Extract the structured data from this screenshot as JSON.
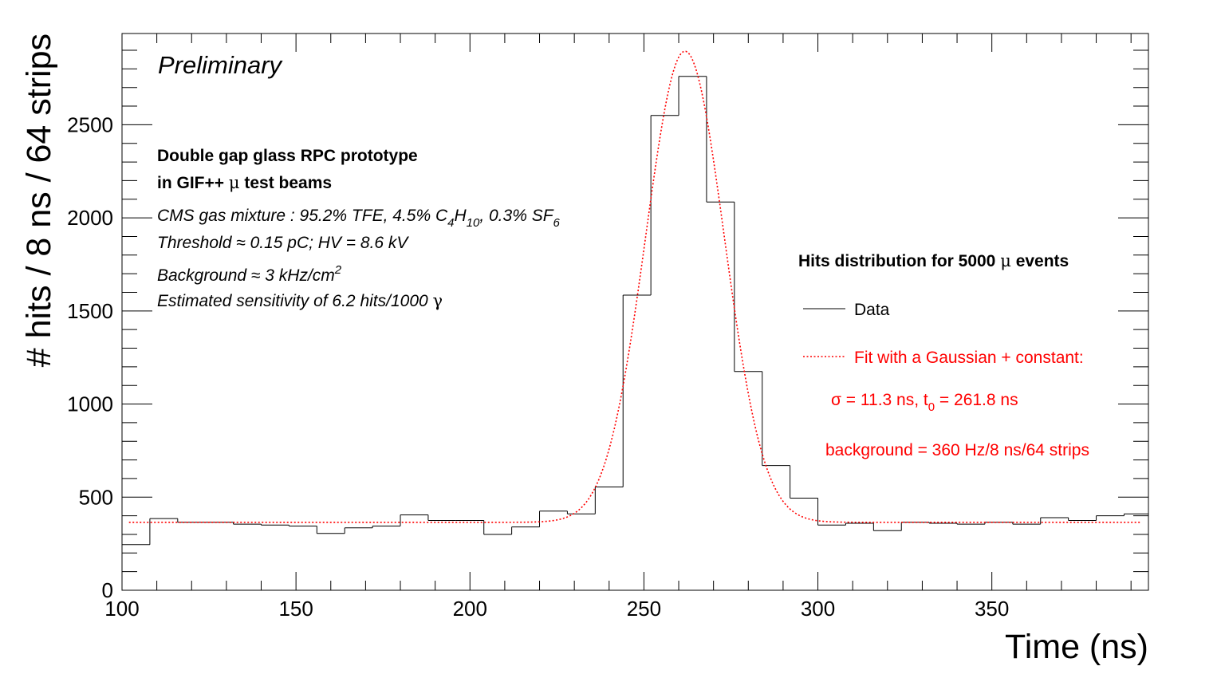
{
  "chart_data": {
    "type": "bar",
    "subtype": "histogram",
    "xlabel": "Time (ns)",
    "ylabel": "# hits / 8 ns / 64 strips",
    "xlim": [
      100,
      395
    ],
    "ylim": [
      0,
      2990
    ],
    "x_ticks": [
      100,
      150,
      200,
      250,
      300,
      350
    ],
    "y_ticks": [
      0,
      500,
      1000,
      1500,
      2000,
      2500
    ],
    "x_tick_labels": [
      "100",
      "150",
      "200",
      "250",
      "300",
      "350"
    ],
    "y_tick_labels": [
      "0",
      "500",
      "1000",
      "1500",
      "2000",
      "2500"
    ],
    "bin_width": 8,
    "bin_start": 100,
    "series": [
      {
        "name": "Data",
        "color": "#000000",
        "style": "histogram-step",
        "values": [
          245,
          385,
          365,
          365,
          355,
          350,
          345,
          305,
          335,
          345,
          405,
          375,
          375,
          300,
          340,
          425,
          410,
          555,
          1585,
          2550,
          2760,
          2085,
          1175,
          670,
          495,
          350,
          360,
          320,
          365,
          360,
          355,
          365,
          355,
          390,
          375,
          400,
          410
        ]
      },
      {
        "name": "Fit with a Gaussian + constant:",
        "color": "#ff0000",
        "style": "dotted-line",
        "fit": {
          "constant": 365,
          "amplitude": 2530,
          "mean": 261.8,
          "sigma": 11.3
        }
      }
    ],
    "annotations": {
      "preliminary": "Preliminary",
      "info_line1": "Double gap glass RPC prototype",
      "info_line2_pre": "in GIF++ ",
      "info_line2_mu": "μ",
      "info_line2_post": " test beams",
      "gas_pre": "CMS gas mixture : 95.2% TFE, 4.5% C",
      "gas_c_sub": "4",
      "gas_h": "H",
      "gas_h_sub": "10",
      "gas_mid": ", 0.3% SF",
      "gas_sf_sub": "6",
      "threshold": "Threshold ≈ 0.15 pC; HV = 8.6 kV",
      "background_pre": "Background ≈ 3 kHz/cm",
      "background_sup": "2",
      "sensitivity_pre": "Estimated sensitivity of 6.2 hits/1000 ",
      "sensitivity_gamma": "γ"
    },
    "legend": {
      "placement": "right",
      "title_pre": "Hits distribution for 5000 ",
      "title_mu": "μ",
      "title_post": " events",
      "entries": [
        "Data",
        "Fit with a Gaussian + constant:"
      ],
      "fit_params_pre": "σ = 11.3 ns, t",
      "fit_params_sub": "0",
      "fit_params_post": " = 261.8 ns",
      "fit_background": "background = 360 Hz/8 ns/64 strips"
    }
  }
}
